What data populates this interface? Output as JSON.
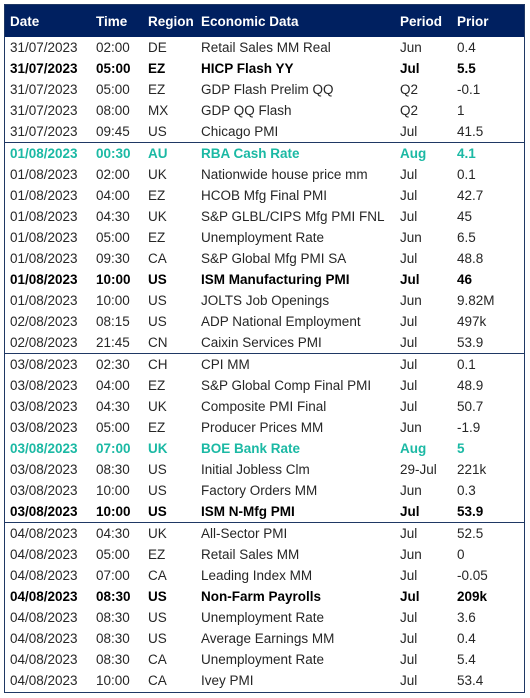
{
  "headers": {
    "date": "Date",
    "time": "Time",
    "region": "Region",
    "data": "Economic Data",
    "period": "Period",
    "prior": "Prior"
  },
  "colors": {
    "header_bg": "#002060",
    "highlight": "#1bb9a4",
    "border": "#1f3864"
  },
  "rows": [
    {
      "date": "31/07/2023",
      "time": "02:00",
      "region": "DE",
      "data": "Retail Sales MM Real",
      "period": "Jun",
      "prior": "0.4",
      "style": "normal",
      "group_start": false
    },
    {
      "date": "31/07/2023",
      "time": "05:00",
      "region": "EZ",
      "data": "HICP Flash YY",
      "period": "Jul",
      "prior": "5.5",
      "style": "bold",
      "group_start": false
    },
    {
      "date": "31/07/2023",
      "time": "05:00",
      "region": "EZ",
      "data": "GDP Flash Prelim QQ",
      "period": "Q2",
      "prior": "-0.1",
      "style": "normal",
      "group_start": false
    },
    {
      "date": "31/07/2023",
      "time": "08:00",
      "region": "MX",
      "data": "GDP QQ Flash",
      "period": "Q2",
      "prior": "1",
      "style": "normal",
      "group_start": false
    },
    {
      "date": "31/07/2023",
      "time": "09:45",
      "region": "US",
      "data": "Chicago PMI",
      "period": "Jul",
      "prior": "41.5",
      "style": "normal",
      "group_start": false
    },
    {
      "date": "01/08/2023",
      "time": "00:30",
      "region": "AU",
      "data": "RBA Cash Rate",
      "period": "Aug",
      "prior": "4.1",
      "style": "highlight",
      "group_start": true
    },
    {
      "date": "01/08/2023",
      "time": "02:00",
      "region": "UK",
      "data": "Nationwide house price mm",
      "period": "Jul",
      "prior": "0.1",
      "style": "normal",
      "group_start": false
    },
    {
      "date": "01/08/2023",
      "time": "04:00",
      "region": "EZ",
      "data": "HCOB Mfg Final PMI",
      "period": "Jul",
      "prior": "42.7",
      "style": "normal",
      "group_start": false
    },
    {
      "date": "01/08/2023",
      "time": "04:30",
      "region": "UK",
      "data": "S&P GLBL/CIPS Mfg PMI FNL",
      "period": "Jul",
      "prior": "45",
      "style": "normal",
      "group_start": false
    },
    {
      "date": "01/08/2023",
      "time": "05:00",
      "region": "EZ",
      "data": "Unemployment Rate",
      "period": "Jun",
      "prior": "6.5",
      "style": "normal",
      "group_start": false
    },
    {
      "date": "01/08/2023",
      "time": "09:30",
      "region": "CA",
      "data": "S&P Global Mfg PMI SA",
      "period": "Jul",
      "prior": "48.8",
      "style": "normal",
      "group_start": false
    },
    {
      "date": "01/08/2023",
      "time": "10:00",
      "region": "US",
      "data": "ISM Manufacturing PMI",
      "period": "Jul",
      "prior": "46",
      "style": "bold",
      "group_start": false
    },
    {
      "date": "01/08/2023",
      "time": "10:00",
      "region": "US",
      "data": "JOLTS Job Openings",
      "period": "Jun",
      "prior": "9.82M",
      "style": "normal",
      "group_start": false
    },
    {
      "date": "02/08/2023",
      "time": "08:15",
      "region": "US",
      "data": "ADP National Employment",
      "period": "Jul",
      "prior": "497k",
      "style": "normal",
      "group_start": false
    },
    {
      "date": "02/08/2023",
      "time": "21:45",
      "region": "CN",
      "data": "Caixin Services PMI",
      "period": "Jul",
      "prior": "53.9",
      "style": "normal",
      "group_start": false
    },
    {
      "date": "03/08/2023",
      "time": "02:30",
      "region": "CH",
      "data": "CPI MM",
      "period": "Jul",
      "prior": "0.1",
      "style": "normal",
      "group_start": true
    },
    {
      "date": "03/08/2023",
      "time": "04:00",
      "region": "EZ",
      "data": "S&P Global Comp Final PMI",
      "period": "Jul",
      "prior": "48.9",
      "style": "normal",
      "group_start": false
    },
    {
      "date": "03/08/2023",
      "time": "04:30",
      "region": "UK",
      "data": "Composite PMI Final",
      "period": "Jul",
      "prior": "50.7",
      "style": "normal",
      "group_start": false
    },
    {
      "date": "03/08/2023",
      "time": "05:00",
      "region": "EZ",
      "data": "Producer Prices MM",
      "period": "Jun",
      "prior": "-1.9",
      "style": "normal",
      "group_start": false
    },
    {
      "date": "03/08/2023",
      "time": "07:00",
      "region": "UK",
      "data": "BOE Bank Rate",
      "period": "Aug",
      "prior": "5",
      "style": "highlight",
      "group_start": false
    },
    {
      "date": "03/08/2023",
      "time": "08:30",
      "region": "US",
      "data": "Initial Jobless Clm",
      "period": "29-Jul",
      "prior": "221k",
      "style": "normal",
      "group_start": false
    },
    {
      "date": "03/08/2023",
      "time": "10:00",
      "region": "US",
      "data": "Factory Orders MM",
      "period": "Jun",
      "prior": "0.3",
      "style": "normal",
      "group_start": false
    },
    {
      "date": "03/08/2023",
      "time": "10:00",
      "region": "US",
      "data": "ISM N-Mfg PMI",
      "period": "Jul",
      "prior": "53.9",
      "style": "bold",
      "group_start": false
    },
    {
      "date": "04/08/2023",
      "time": "04:30",
      "region": "UK",
      "data": "All-Sector PMI",
      "period": "Jul",
      "prior": "52.5",
      "style": "normal",
      "group_start": true
    },
    {
      "date": "04/08/2023",
      "time": "05:00",
      "region": "EZ",
      "data": "Retail Sales MM",
      "period": "Jun",
      "prior": "0",
      "style": "normal",
      "group_start": false
    },
    {
      "date": "04/08/2023",
      "time": "07:00",
      "region": "CA",
      "data": "Leading Index MM",
      "period": "Jul",
      "prior": "-0.05",
      "style": "normal",
      "group_start": false
    },
    {
      "date": "04/08/2023",
      "time": "08:30",
      "region": "US",
      "data": "Non-Farm Payrolls",
      "period": "Jul",
      "prior": "209k",
      "style": "bold",
      "group_start": false
    },
    {
      "date": "04/08/2023",
      "time": "08:30",
      "region": "US",
      "data": "Unemployment Rate",
      "period": "Jul",
      "prior": "3.6",
      "style": "normal",
      "group_start": false
    },
    {
      "date": "04/08/2023",
      "time": "08:30",
      "region": "US",
      "data": "Average Earnings MM",
      "period": "Jul",
      "prior": "0.4",
      "style": "normal",
      "group_start": false
    },
    {
      "date": "04/08/2023",
      "time": "08:30",
      "region": "CA",
      "data": "Unemployment Rate",
      "period": "Jul",
      "prior": "5.4",
      "style": "normal",
      "group_start": false
    },
    {
      "date": "04/08/2023",
      "time": "10:00",
      "region": "CA",
      "data": "Ivey PMI",
      "period": "Jul",
      "prior": "53.4",
      "style": "normal",
      "group_start": false
    }
  ]
}
